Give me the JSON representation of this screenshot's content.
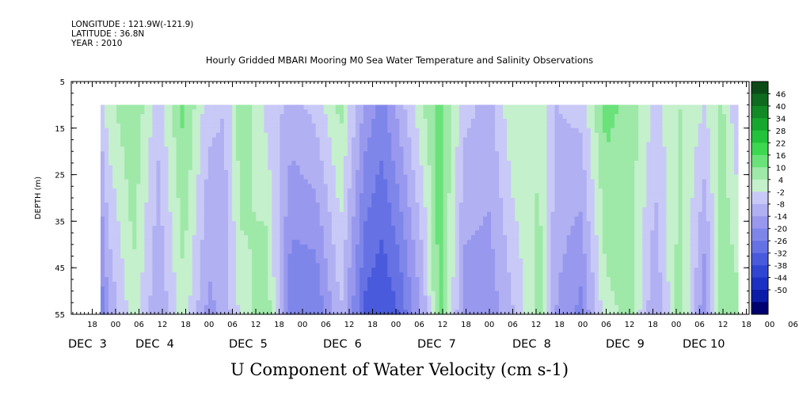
{
  "header": {
    "longitude": "LONGITUDE : 121.9W(-121.9)",
    "latitude": "LATITUDE : 36.8N",
    "year": "YEAR : 2010"
  },
  "chart_data": {
    "type": "heatmap",
    "title": "Hourly Gridded MBARI Mooring M0 Sea Water Temperature and Salinity Observations",
    "xlabel": "U Component of Water Velocity (cm s-1)",
    "ylabel": "DEPTH (m)",
    "y_ticks": [
      5,
      15,
      25,
      35,
      45,
      55
    ],
    "ylim": [
      55,
      5
    ],
    "y_data_range": [
      10,
      55
    ],
    "x_hour_ticks": [
      "18",
      "00",
      "06",
      "12",
      "18",
      "00",
      "06",
      "12",
      "18",
      "00",
      "06",
      "12",
      "18",
      "00",
      "06",
      "12",
      "18",
      "00",
      "06",
      "12",
      "18",
      "00",
      "06",
      "12",
      "18",
      "00",
      "06",
      "12",
      "18",
      "00",
      "06",
      "12"
    ],
    "x_day_labels": [
      "DEC  3",
      "DEC  4",
      "DEC  5",
      "DEC  6",
      "DEC  7",
      "DEC  8",
      "DEC  9",
      "DEC 10"
    ],
    "colorbar": {
      "levels": [
        46,
        40,
        34,
        28,
        22,
        16,
        10,
        4,
        -2,
        -8,
        -14,
        -20,
        -26,
        -32,
        -38,
        -44,
        -50
      ],
      "colors": [
        "#0b4a16",
        "#0e6a1e",
        "#118a25",
        "#16a82e",
        "#22c23a",
        "#3cd84f",
        "#6ae27a",
        "#9ee8a8",
        "#c4f0cc",
        "#c9c9f7",
        "#b0b0f2",
        "#9898ee",
        "#7f86ea",
        "#6672e4",
        "#4a5adc",
        "#3046d3",
        "#1c30c4",
        "#0d1ca8",
        "#000070"
      ]
    },
    "profiles": [
      {
        "time": 0,
        "surface": -6,
        "bottom": -25
      },
      {
        "time": 2,
        "surface": 2,
        "bottom": -14
      },
      {
        "time": 8,
        "surface": 10,
        "bottom": 2
      },
      {
        "time": 14,
        "surface": -6,
        "bottom": -14
      },
      {
        "time": 20,
        "surface": 12,
        "bottom": 2
      },
      {
        "time": 26,
        "surface": -6,
        "bottom": -16
      },
      {
        "time": 30,
        "surface": -8,
        "bottom": -12
      },
      {
        "time": 34,
        "surface": 10,
        "bottom": 0
      },
      {
        "time": 40,
        "surface": -4,
        "bottom": 10
      },
      {
        "time": 46,
        "surface": -10,
        "bottom": -26
      },
      {
        "time": 52,
        "surface": -6,
        "bottom": -26
      },
      {
        "time": 58,
        "surface": 6,
        "bottom": -8
      },
      {
        "time": 64,
        "surface": -16,
        "bottom": -34
      },
      {
        "time": 68,
        "surface": -22,
        "bottom": -38
      },
      {
        "time": 72,
        "surface": -12,
        "bottom": -32
      },
      {
        "time": 78,
        "surface": 4,
        "bottom": -12
      },
      {
        "time": 82,
        "surface": 12,
        "bottom": 14
      },
      {
        "time": 88,
        "surface": -6,
        "bottom": -18
      },
      {
        "time": 94,
        "surface": -10,
        "bottom": -18
      },
      {
        "time": 100,
        "surface": 4,
        "bottom": -8
      },
      {
        "time": 106,
        "surface": 2,
        "bottom": 8
      },
      {
        "time": 110,
        "surface": -8,
        "bottom": -14
      },
      {
        "time": 116,
        "surface": -6,
        "bottom": -22
      },
      {
        "time": 122,
        "surface": 12,
        "bottom": 2
      },
      {
        "time": 128,
        "surface": 8,
        "bottom": 6
      },
      {
        "time": 134,
        "surface": -4,
        "bottom": -14
      },
      {
        "time": 140,
        "surface": 4,
        "bottom": 8
      },
      {
        "time": 146,
        "surface": -2,
        "bottom": -20
      },
      {
        "time": 150,
        "surface": 6,
        "bottom": 10
      },
      {
        "time": 154,
        "surface": -8,
        "bottom": 6
      }
    ]
  }
}
